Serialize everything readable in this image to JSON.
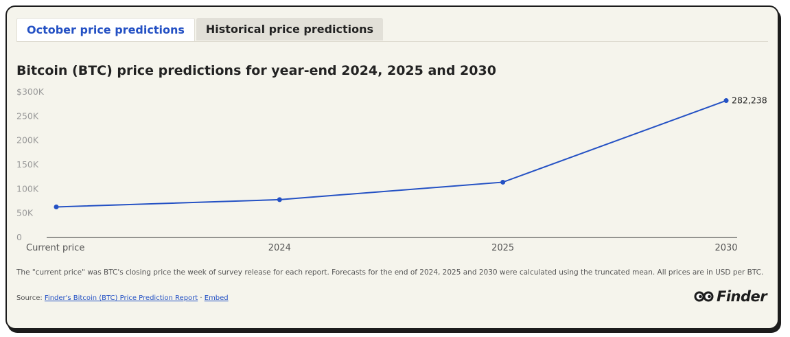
{
  "tabs": [
    {
      "label": "October price predictions",
      "active": true
    },
    {
      "label": "Historical price predictions",
      "active": false
    }
  ],
  "chart_data": {
    "type": "line",
    "title": "Bitcoin (BTC) price predictions for year-end 2024, 2025 and 2030",
    "categories": [
      "Current price",
      "2024",
      "2025",
      "2030"
    ],
    "series": [
      {
        "name": "Bitcoin (BTC) price",
        "values": [
          63000,
          78000,
          114000,
          282238
        ],
        "color": "#2451c4"
      }
    ],
    "y_ticks": [
      {
        "value": 0,
        "label": "0"
      },
      {
        "value": 50000,
        "label": "50K"
      },
      {
        "value": 100000,
        "label": "100K"
      },
      {
        "value": 150000,
        "label": "150K"
      },
      {
        "value": 200000,
        "label": "200K"
      },
      {
        "value": 250000,
        "label": "250K"
      },
      {
        "value": 300000,
        "label": "$300K"
      }
    ],
    "ylim": [
      0,
      300000
    ],
    "data_labels": [
      {
        "index": 3,
        "label": "282,238"
      }
    ],
    "xlabel": "",
    "ylabel": "",
    "grid": false
  },
  "footer": {
    "note": "The \"current price\" was BTC's closing price the week of survey release for each report. Forecasts for the end of 2024, 2025 and 2030 were calculated using the truncated mean. All prices are in USD per BTC.",
    "source_prefix": "Source: ",
    "source_link": "Finder's Bitcoin (BTC) Price Prediction Report",
    "separator": " · ",
    "embed_link": "Embed"
  },
  "logo": {
    "text": "Finder"
  }
}
